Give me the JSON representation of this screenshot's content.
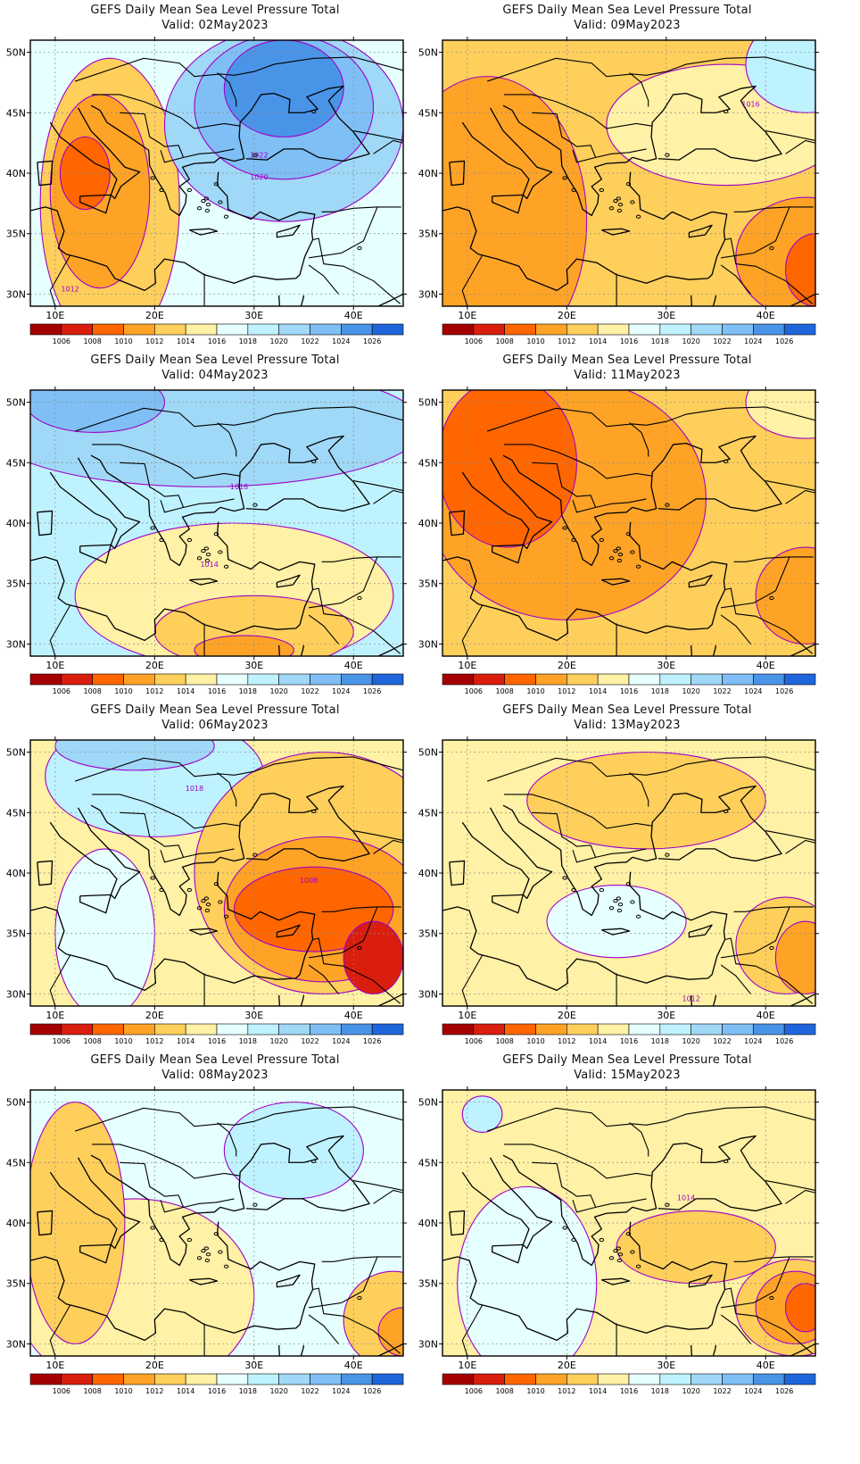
{
  "title_prefix": "GEFS Daily Mean Sea Level Pressure Total",
  "panels": [
    {
      "title": "GEFS Daily Mean Sea Level Pressure Total",
      "valid": "Valid: 02May2023",
      "fill_level": 1016,
      "blobs": [
        {
          "level": 1012,
          "cx": 15.5,
          "cy": 37.5,
          "rx": 7,
          "ry": 12
        },
        {
          "level": 1010,
          "cx": 14.5,
          "cy": 38.5,
          "rx": 5,
          "ry": 8
        },
        {
          "level": 1008,
          "cx": 13,
          "cy": 40,
          "rx": 2.5,
          "ry": 3
        },
        {
          "level": 1020,
          "cx": 33,
          "cy": 44,
          "rx": 12,
          "ry": 8
        },
        {
          "level": 1022,
          "cx": 33,
          "cy": 45.5,
          "rx": 9,
          "ry": 6
        },
        {
          "level": 1024,
          "cx": 33,
          "cy": 47,
          "rx": 6,
          "ry": 4
        }
      ],
      "contour_labels": [
        {
          "text": "1022",
          "lon": 30.5,
          "lat": 41.3
        },
        {
          "text": "1020",
          "lon": 30.5,
          "lat": 39.5
        },
        {
          "text": "1012",
          "lon": 11.5,
          "lat": 30.2
        }
      ]
    },
    {
      "title": "GEFS Daily Mean Sea Level Pressure Total",
      "valid": "Valid: 09May2023",
      "fill_level": 1012,
      "blobs": [
        {
          "level": 1010,
          "cx": 12,
          "cy": 36,
          "rx": 10,
          "ry": 12
        },
        {
          "level": 1014,
          "cx": 36,
          "cy": 44,
          "rx": 12,
          "ry": 5
        },
        {
          "level": 1018,
          "cx": 44,
          "cy": 49,
          "rx": 6,
          "ry": 4
        },
        {
          "level": 1010,
          "cx": 44,
          "cy": 33,
          "rx": 7,
          "ry": 5
        },
        {
          "level": 1008,
          "cx": 45,
          "cy": 32,
          "rx": 3,
          "ry": 3
        }
      ],
      "contour_labels": [
        {
          "text": "1016",
          "lon": 38.5,
          "lat": 45.5
        }
      ]
    },
    {
      "title": "GEFS Daily Mean Sea Level Pressure Total",
      "valid": "Valid: 04May2023",
      "fill_level": 1018,
      "blobs": [
        {
          "level": 1020,
          "cx": 25,
          "cy": 48,
          "rx": 22,
          "ry": 5
        },
        {
          "level": 1022,
          "cx": 14,
          "cy": 50,
          "rx": 7,
          "ry": 2.5
        },
        {
          "level": 1014,
          "cx": 28,
          "cy": 34,
          "rx": 16,
          "ry": 6
        },
        {
          "level": 1012,
          "cx": 30,
          "cy": 31,
          "rx": 10,
          "ry": 3
        },
        {
          "level": 1010,
          "cx": 29,
          "cy": 29.5,
          "rx": 5,
          "ry": 1.2
        }
      ],
      "contour_labels": [
        {
          "text": "1018",
          "lon": 28.5,
          "lat": 42.8
        },
        {
          "text": "1014",
          "lon": 25.5,
          "lat": 36.4
        }
      ]
    },
    {
      "title": "GEFS Daily Mean Sea Level Pressure Total",
      "valid": "Valid: 11May2023",
      "fill_level": 1012,
      "blobs": [
        {
          "level": 1010,
          "cx": 20,
          "cy": 42,
          "rx": 14,
          "ry": 10
        },
        {
          "level": 1008,
          "cx": 14,
          "cy": 45,
          "rx": 7,
          "ry": 7
        },
        {
          "level": 1010,
          "cx": 44,
          "cy": 34,
          "rx": 5,
          "ry": 4
        },
        {
          "level": 1014,
          "cx": 44,
          "cy": 50,
          "rx": 6,
          "ry": 3
        }
      ],
      "contour_labels": []
    },
    {
      "title": "GEFS Daily Mean Sea Level Pressure Total",
      "valid": "Valid: 06May2023",
      "fill_level": 1014,
      "blobs": [
        {
          "level": 1018,
          "cx": 20,
          "cy": 48,
          "rx": 11,
          "ry": 5
        },
        {
          "level": 1020,
          "cx": 18,
          "cy": 50.5,
          "rx": 8,
          "ry": 2
        },
        {
          "level": 1016,
          "cx": 15,
          "cy": 35,
          "rx": 5,
          "ry": 7
        },
        {
          "level": 1012,
          "cx": 37,
          "cy": 40,
          "rx": 13,
          "ry": 10
        },
        {
          "level": 1010,
          "cx": 37,
          "cy": 37,
          "rx": 10,
          "ry": 6
        },
        {
          "level": 1008,
          "cx": 36,
          "cy": 37,
          "rx": 8,
          "ry": 3.5
        },
        {
          "level": 1006,
          "cx": 42,
          "cy": 33,
          "rx": 3,
          "ry": 3
        }
      ],
      "contour_labels": [
        {
          "text": "1018",
          "lon": 24,
          "lat": 46.8
        },
        {
          "text": "1008",
          "lon": 35.5,
          "lat": 39.2
        }
      ]
    },
    {
      "title": "GEFS Daily Mean Sea Level Pressure Total",
      "valid": "Valid: 13May2023",
      "fill_level": 1014,
      "blobs": [
        {
          "level": 1012,
          "cx": 28,
          "cy": 46,
          "rx": 12,
          "ry": 4
        },
        {
          "level": 1016,
          "cx": 25,
          "cy": 36,
          "rx": 7,
          "ry": 3
        },
        {
          "level": 1012,
          "cx": 42,
          "cy": 34,
          "rx": 5,
          "ry": 4
        },
        {
          "level": 1010,
          "cx": 44,
          "cy": 33,
          "rx": 3,
          "ry": 3
        }
      ],
      "contour_labels": [
        {
          "text": "1012",
          "lon": 32.5,
          "lat": 29.4
        }
      ]
    },
    {
      "title": "GEFS Daily Mean Sea Level Pressure Total",
      "valid": "Valid: 08May2023",
      "fill_level": 1016,
      "blobs": [
        {
          "level": 1014,
          "cx": 18,
          "cy": 34,
          "rx": 12,
          "ry": 8
        },
        {
          "level": 1012,
          "cx": 12,
          "cy": 40,
          "rx": 5,
          "ry": 10
        },
        {
          "level": 1018,
          "cx": 34,
          "cy": 46,
          "rx": 7,
          "ry": 4
        },
        {
          "level": 1012,
          "cx": 44,
          "cy": 32,
          "rx": 5,
          "ry": 4
        },
        {
          "level": 1010,
          "cx": 45,
          "cy": 31,
          "rx": 2.5,
          "ry": 2
        }
      ],
      "contour_labels": []
    },
    {
      "title": "GEFS Daily Mean Sea Level Pressure Total",
      "valid": "Valid: 15May2023",
      "fill_level": 1014,
      "blobs": [
        {
          "level": 1016,
          "cx": 16,
          "cy": 35,
          "rx": 7,
          "ry": 8
        },
        {
          "level": 1012,
          "cx": 33,
          "cy": 38,
          "rx": 8,
          "ry": 3
        },
        {
          "level": 1012,
          "cx": 43,
          "cy": 33,
          "rx": 6,
          "ry": 4
        },
        {
          "level": 1010,
          "cx": 43,
          "cy": 33,
          "rx": 4,
          "ry": 3
        },
        {
          "level": 1008,
          "cx": 44,
          "cy": 33,
          "rx": 2,
          "ry": 2
        },
        {
          "level": 1018,
          "cx": 11.5,
          "cy": 49,
          "rx": 2,
          "ry": 1.5
        }
      ],
      "contour_labels": [
        {
          "text": "1014",
          "lon": 32,
          "lat": 41.9
        }
      ]
    }
  ],
  "map_extent": {
    "lon": [
      7.5,
      45
    ],
    "lat": [
      29,
      51
    ]
  },
  "lat_ticks": [
    50,
    45,
    40,
    35,
    30
  ],
  "lat_tick_labels": [
    "50N",
    "45N",
    "40N",
    "35N",
    "30N"
  ],
  "lon_ticks": [
    10,
    20,
    30,
    40
  ],
  "lon_tick_labels": [
    "10E",
    "20E",
    "30E",
    "40E"
  ],
  "colorbar": {
    "levels": [
      "1006",
      "1008",
      "1010",
      "1012",
      "1014",
      "1016",
      "1018",
      "1020",
      "1022",
      "1024",
      "1026"
    ],
    "colors": [
      "#a50000",
      "#d91e0e",
      "#ff6600",
      "#ffa326",
      "#ffcf5c",
      "#fff1a5",
      "#e6ffff",
      "#bff2ff",
      "#a0d8f7",
      "#7fbff5",
      "#4a94e8",
      "#1f66dc"
    ]
  },
  "contour_color": "#a000c8"
}
